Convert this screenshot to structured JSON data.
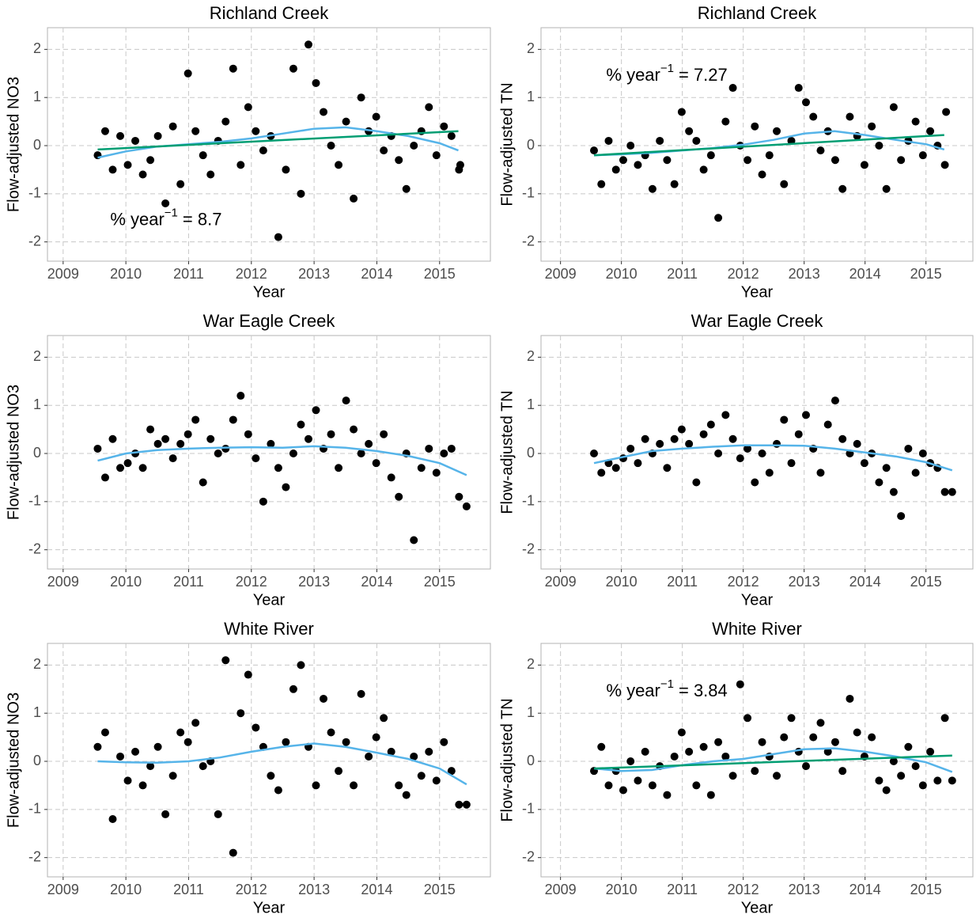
{
  "chart_data": [
    {
      "type": "scatter",
      "title": "Richland Creek",
      "xlabel": "Year",
      "ylabel": "Flow-adjusted NO3",
      "xlim": [
        2008.75,
        2015.81
      ],
      "ylim": [
        -2.4,
        2.45
      ],
      "xticks": [
        2009,
        2010,
        2011,
        2012,
        2013,
        2014,
        2015
      ],
      "yticks": [
        -2,
        -1,
        0,
        1,
        2
      ],
      "grid": true,
      "points": {
        "color": "#000000",
        "x": [
          2009.55,
          2009.67,
          2009.79,
          2009.91,
          2010.03,
          2010.15,
          2010.27,
          2010.39,
          2010.51,
          2010.63,
          2010.75,
          2010.87,
          2010.99,
          2011.11,
          2011.23,
          2011.35,
          2011.47,
          2011.59,
          2011.71,
          2011.83,
          2011.95,
          2012.07,
          2012.19,
          2012.31,
          2012.43,
          2012.55,
          2012.67,
          2012.79,
          2012.91,
          2013.03,
          2013.15,
          2013.27,
          2013.39,
          2013.51,
          2013.63,
          2013.75,
          2013.87,
          2013.99,
          2014.11,
          2014.23,
          2014.35,
          2014.47,
          2014.59,
          2014.71,
          2014.83,
          2014.95,
          2015.07,
          2015.19,
          2015.31,
          2015.33
        ],
        "y": [
          -0.2,
          0.3,
          -0.5,
          0.2,
          -0.4,
          0.1,
          -0.6,
          -0.3,
          0.2,
          -1.2,
          0.4,
          -0.8,
          1.5,
          0.3,
          -0.2,
          -0.6,
          0.1,
          0.5,
          1.6,
          -0.4,
          0.8,
          0.3,
          -0.1,
          0.2,
          -1.9,
          -0.5,
          1.6,
          -1.0,
          2.1,
          1.3,
          0.7,
          0.0,
          -0.4,
          0.5,
          -1.1,
          1.0,
          0.3,
          0.6,
          -0.1,
          0.2,
          -0.3,
          -0.9,
          0.0,
          0.3,
          0.8,
          -0.2,
          0.4,
          0.2,
          -0.5,
          -0.4
        ]
      },
      "lines": [
        {
          "color": "#56B4E9",
          "x": [
            2009.55,
            2010,
            2010.5,
            2011,
            2011.5,
            2012,
            2012.5,
            2013,
            2013.5,
            2014,
            2014.5,
            2015,
            2015.3
          ],
          "y": [
            -0.25,
            -0.12,
            -0.02,
            0.03,
            0.08,
            0.15,
            0.25,
            0.35,
            0.38,
            0.3,
            0.2,
            0.05,
            -0.1
          ]
        },
        {
          "color": "#009E73",
          "x": [
            2009.55,
            2015.3
          ],
          "y": [
            -0.08,
            0.3
          ]
        }
      ],
      "annotation": {
        "text": "% year",
        "exponent": "−1",
        "value_text": "= 8.7"
      }
    },
    {
      "type": "scatter",
      "title": "Richland Creek",
      "xlabel": "Year",
      "ylabel": "Flow-adjusted TN",
      "xlim": [
        2008.68,
        2015.77
      ],
      "ylim": [
        -2.4,
        2.45
      ],
      "xticks": [
        2009,
        2010,
        2011,
        2012,
        2013,
        2014,
        2015
      ],
      "yticks": [
        -2,
        -1,
        0,
        1,
        2
      ],
      "grid": true,
      "points": {
        "color": "#000000",
        "x": [
          2009.55,
          2009.67,
          2009.79,
          2009.91,
          2010.03,
          2010.15,
          2010.27,
          2010.39,
          2010.51,
          2010.63,
          2010.75,
          2010.87,
          2010.99,
          2011.11,
          2011.23,
          2011.35,
          2011.47,
          2011.59,
          2011.71,
          2011.83,
          2011.95,
          2012.07,
          2012.19,
          2012.31,
          2012.43,
          2012.55,
          2012.67,
          2012.79,
          2012.91,
          2013.03,
          2013.15,
          2013.27,
          2013.39,
          2013.51,
          2013.63,
          2013.75,
          2013.87,
          2013.99,
          2014.11,
          2014.23,
          2014.35,
          2014.47,
          2014.59,
          2014.71,
          2014.83,
          2014.95,
          2015.07,
          2015.19,
          2015.31,
          2015.33
        ],
        "y": [
          -0.1,
          -0.8,
          0.1,
          -0.5,
          -0.3,
          0.0,
          -0.4,
          -0.2,
          -0.9,
          0.1,
          -0.3,
          -0.8,
          0.7,
          0.3,
          0.1,
          -0.5,
          -0.2,
          -1.5,
          0.5,
          1.2,
          0.0,
          -0.3,
          0.4,
          -0.6,
          -0.2,
          0.3,
          -0.8,
          0.1,
          1.2,
          0.9,
          0.6,
          -0.1,
          0.3,
          -0.3,
          -0.9,
          0.6,
          0.2,
          -0.4,
          0.4,
          0.0,
          -0.9,
          0.8,
          -0.3,
          0.1,
          0.5,
          -0.2,
          0.3,
          0.0,
          -0.4,
          0.7
        ]
      },
      "lines": [
        {
          "color": "#56B4E9",
          "x": [
            2009.55,
            2010,
            2010.5,
            2011,
            2011.5,
            2012,
            2012.5,
            2013,
            2013.5,
            2014,
            2014.5,
            2015,
            2015.3
          ],
          "y": [
            -0.2,
            -0.18,
            -0.15,
            -0.1,
            -0.05,
            0.02,
            0.12,
            0.25,
            0.3,
            0.22,
            0.12,
            0.03,
            -0.08
          ]
        },
        {
          "color": "#009E73",
          "x": [
            2009.55,
            2015.3
          ],
          "y": [
            -0.2,
            0.22
          ]
        }
      ],
      "annotation": {
        "text": "% year",
        "exponent": "−1",
        "value_text": "= 7.27"
      }
    },
    {
      "type": "scatter",
      "title": "War Eagle Creek",
      "xlabel": "Year",
      "ylabel": "Flow-adjusted NO3",
      "xlim": [
        2008.75,
        2015.81
      ],
      "ylim": [
        -2.4,
        2.45
      ],
      "xticks": [
        2009,
        2010,
        2011,
        2012,
        2013,
        2014,
        2015
      ],
      "yticks": [
        -2,
        -1,
        0,
        1,
        2
      ],
      "grid": true,
      "points": {
        "color": "#000000",
        "x": [
          2009.55,
          2009.67,
          2009.79,
          2009.91,
          2010.03,
          2010.15,
          2010.27,
          2010.39,
          2010.51,
          2010.63,
          2010.75,
          2010.87,
          2010.99,
          2011.11,
          2011.23,
          2011.35,
          2011.47,
          2011.59,
          2011.71,
          2011.83,
          2011.95,
          2012.07,
          2012.19,
          2012.31,
          2012.43,
          2012.55,
          2012.67,
          2012.79,
          2012.91,
          2013.03,
          2013.15,
          2013.27,
          2013.39,
          2013.51,
          2013.63,
          2013.75,
          2013.87,
          2013.99,
          2014.11,
          2014.23,
          2014.35,
          2014.47,
          2014.59,
          2014.71,
          2014.83,
          2014.95,
          2015.07,
          2015.19,
          2015.31,
          2015.43
        ],
        "y": [
          0.1,
          -0.5,
          0.3,
          -0.3,
          -0.2,
          0.0,
          -0.3,
          0.5,
          0.2,
          0.3,
          -0.1,
          0.2,
          0.4,
          0.7,
          -0.6,
          0.3,
          0.0,
          0.1,
          0.7,
          1.2,
          0.4,
          -0.1,
          -1.0,
          0.2,
          -0.3,
          -0.7,
          0.0,
          0.6,
          0.3,
          0.9,
          0.1,
          0.4,
          -0.3,
          1.1,
          0.5,
          0.0,
          0.2,
          -0.2,
          0.4,
          -0.5,
          -0.9,
          0.0,
          -1.8,
          -0.3,
          0.1,
          -0.4,
          0.0,
          0.1,
          -0.9,
          -1.1
        ]
      },
      "lines": [
        {
          "color": "#56B4E9",
          "x": [
            2009.55,
            2010,
            2010.5,
            2011,
            2011.5,
            2012,
            2012.5,
            2013,
            2013.5,
            2014,
            2014.5,
            2015,
            2015.43
          ],
          "y": [
            -0.15,
            0.0,
            0.07,
            0.1,
            0.12,
            0.13,
            0.12,
            0.15,
            0.12,
            0.05,
            -0.05,
            -0.2,
            -0.45
          ]
        }
      ]
    },
    {
      "type": "scatter",
      "title": "War Eagle Creek",
      "xlabel": "Year",
      "ylabel": "Flow-adjusted TN",
      "xlim": [
        2008.68,
        2015.77
      ],
      "ylim": [
        -2.4,
        2.45
      ],
      "xticks": [
        2009,
        2010,
        2011,
        2012,
        2013,
        2014,
        2015
      ],
      "yticks": [
        -2,
        -1,
        0,
        1,
        2
      ],
      "grid": true,
      "points": {
        "color": "#000000",
        "x": [
          2009.55,
          2009.67,
          2009.79,
          2009.91,
          2010.03,
          2010.15,
          2010.27,
          2010.39,
          2010.51,
          2010.63,
          2010.75,
          2010.87,
          2010.99,
          2011.11,
          2011.23,
          2011.35,
          2011.47,
          2011.59,
          2011.71,
          2011.83,
          2011.95,
          2012.07,
          2012.19,
          2012.31,
          2012.43,
          2012.55,
          2012.67,
          2012.79,
          2012.91,
          2013.03,
          2013.15,
          2013.27,
          2013.39,
          2013.51,
          2013.63,
          2013.75,
          2013.87,
          2013.99,
          2014.11,
          2014.23,
          2014.35,
          2014.47,
          2014.59,
          2014.71,
          2014.83,
          2014.95,
          2015.07,
          2015.19,
          2015.31,
          2015.43
        ],
        "y": [
          0.0,
          -0.4,
          -0.2,
          -0.3,
          -0.1,
          0.1,
          -0.2,
          0.3,
          0.0,
          0.2,
          -0.3,
          0.3,
          0.5,
          0.2,
          -0.6,
          0.4,
          0.6,
          0.0,
          0.8,
          0.3,
          -0.1,
          0.1,
          -0.6,
          0.0,
          -0.4,
          0.2,
          0.7,
          -0.2,
          0.4,
          0.8,
          0.1,
          -0.4,
          0.6,
          1.1,
          0.3,
          0.0,
          0.2,
          -0.2,
          0.0,
          -0.6,
          -0.3,
          -0.8,
          -1.3,
          0.1,
          -0.4,
          0.0,
          -0.2,
          -0.3,
          -0.8,
          -0.8
        ]
      },
      "lines": [
        {
          "color": "#56B4E9",
          "x": [
            2009.55,
            2010,
            2010.5,
            2011,
            2011.5,
            2012,
            2012.5,
            2013,
            2013.5,
            2014,
            2014.5,
            2015,
            2015.43
          ],
          "y": [
            -0.2,
            -0.08,
            0.05,
            0.1,
            0.14,
            0.17,
            0.17,
            0.16,
            0.1,
            0.02,
            -0.06,
            -0.18,
            -0.35
          ]
        }
      ]
    },
    {
      "type": "scatter",
      "title": "White River",
      "xlabel": "Year",
      "ylabel": "Flow-adjusted NO3",
      "xlim": [
        2008.75,
        2015.81
      ],
      "ylim": [
        -2.4,
        2.45
      ],
      "xticks": [
        2009,
        2010,
        2011,
        2012,
        2013,
        2014,
        2015
      ],
      "yticks": [
        -2,
        -1,
        0,
        1,
        2
      ],
      "grid": true,
      "points": {
        "color": "#000000",
        "x": [
          2009.55,
          2009.67,
          2009.79,
          2009.91,
          2010.03,
          2010.15,
          2010.27,
          2010.39,
          2010.51,
          2010.63,
          2010.75,
          2010.87,
          2010.99,
          2011.11,
          2011.23,
          2011.35,
          2011.47,
          2011.59,
          2011.71,
          2011.83,
          2011.95,
          2012.07,
          2012.19,
          2012.31,
          2012.43,
          2012.55,
          2012.67,
          2012.79,
          2012.91,
          2013.03,
          2013.15,
          2013.27,
          2013.39,
          2013.51,
          2013.63,
          2013.75,
          2013.87,
          2013.99,
          2014.11,
          2014.23,
          2014.35,
          2014.47,
          2014.59,
          2014.71,
          2014.83,
          2014.95,
          2015.07,
          2015.19,
          2015.31,
          2015.43
        ],
        "y": [
          0.3,
          0.6,
          -1.2,
          0.1,
          -0.4,
          0.2,
          -0.5,
          -0.1,
          0.3,
          -1.1,
          -0.3,
          0.6,
          0.4,
          0.8,
          -0.1,
          0.0,
          -1.1,
          2.1,
          -1.9,
          1.0,
          1.8,
          0.7,
          0.3,
          -0.3,
          -0.6,
          0.4,
          1.5,
          2.0,
          0.3,
          -0.5,
          1.3,
          0.6,
          -0.2,
          0.4,
          -0.5,
          1.4,
          0.1,
          0.5,
          0.9,
          0.2,
          -0.5,
          -0.7,
          0.1,
          -0.3,
          0.2,
          -0.4,
          0.4,
          -0.2,
          -0.9,
          -0.9
        ]
      },
      "lines": [
        {
          "color": "#56B4E9",
          "x": [
            2009.55,
            2010,
            2010.5,
            2011,
            2011.5,
            2012,
            2012.5,
            2013,
            2013.5,
            2014,
            2014.5,
            2015,
            2015.43
          ],
          "y": [
            0.0,
            -0.02,
            -0.03,
            0.0,
            0.08,
            0.2,
            0.3,
            0.37,
            0.3,
            0.18,
            0.05,
            -0.15,
            -0.48
          ]
        }
      ]
    },
    {
      "type": "scatter",
      "title": "White River",
      "xlabel": "Year",
      "ylabel": "Flow-adjusted TN",
      "xlim": [
        2008.68,
        2015.77
      ],
      "ylim": [
        -2.4,
        2.45
      ],
      "xticks": [
        2009,
        2010,
        2011,
        2012,
        2013,
        2014,
        2015
      ],
      "yticks": [
        -2,
        -1,
        0,
        1,
        2
      ],
      "grid": true,
      "points": {
        "color": "#000000",
        "x": [
          2009.55,
          2009.67,
          2009.79,
          2009.91,
          2010.03,
          2010.15,
          2010.27,
          2010.39,
          2010.51,
          2010.63,
          2010.75,
          2010.87,
          2010.99,
          2011.11,
          2011.23,
          2011.35,
          2011.47,
          2011.59,
          2011.71,
          2011.83,
          2011.95,
          2012.07,
          2012.19,
          2012.31,
          2012.43,
          2012.55,
          2012.67,
          2012.79,
          2012.91,
          2013.03,
          2013.15,
          2013.27,
          2013.39,
          2013.51,
          2013.63,
          2013.75,
          2013.87,
          2013.99,
          2014.11,
          2014.23,
          2014.35,
          2014.47,
          2014.59,
          2014.71,
          2014.83,
          2014.95,
          2015.07,
          2015.19,
          2015.31,
          2015.43
        ],
        "y": [
          -0.2,
          0.3,
          -0.5,
          -0.2,
          -0.6,
          0.0,
          -0.4,
          0.2,
          -0.5,
          -0.1,
          -0.7,
          0.1,
          0.6,
          0.2,
          -0.5,
          0.3,
          -0.7,
          0.4,
          0.1,
          -0.3,
          1.6,
          0.9,
          -0.2,
          0.4,
          0.1,
          -0.3,
          0.5,
          0.9,
          0.2,
          -0.1,
          0.5,
          0.8,
          0.2,
          0.4,
          -0.2,
          1.3,
          0.6,
          0.1,
          0.5,
          -0.4,
          -0.6,
          0.0,
          -0.3,
          0.3,
          -0.1,
          -0.5,
          0.2,
          -0.4,
          0.9,
          -0.4
        ]
      },
      "lines": [
        {
          "color": "#56B4E9",
          "x": [
            2009.55,
            2010,
            2010.5,
            2011,
            2011.5,
            2012,
            2012.5,
            2013,
            2013.5,
            2014,
            2014.5,
            2015,
            2015.43
          ],
          "y": [
            -0.15,
            -0.2,
            -0.18,
            -0.08,
            0.0,
            0.05,
            0.15,
            0.25,
            0.27,
            0.2,
            0.1,
            -0.02,
            -0.22
          ]
        },
        {
          "color": "#009E73",
          "x": [
            2009.55,
            2015.43
          ],
          "y": [
            -0.15,
            0.12
          ]
        }
      ],
      "annotation": {
        "text": "% year",
        "exponent": "−1",
        "value_text": "= 3.84"
      }
    }
  ]
}
